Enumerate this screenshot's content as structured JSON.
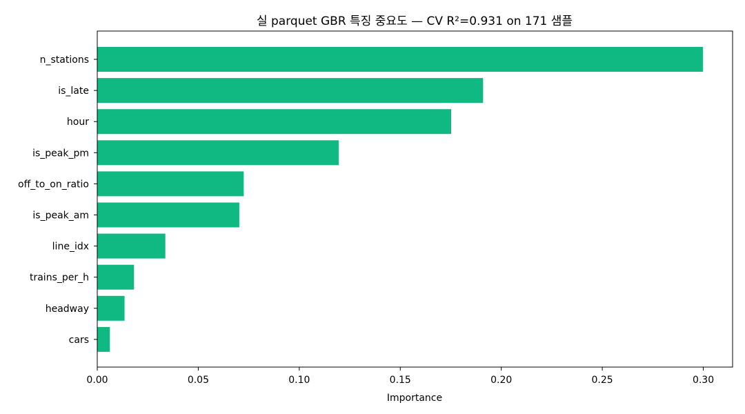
{
  "chart_data": {
    "type": "bar",
    "orientation": "horizontal",
    "title": "실 parquet GBR 특징 중요도 — CV R²=0.931 on 171 샘플",
    "xlabel": "Importance",
    "ylabel": "",
    "xlim": [
      0,
      0.3145
    ],
    "xticks": [
      "0.00",
      "0.05",
      "0.10",
      "0.15",
      "0.20",
      "0.25",
      "0.30"
    ],
    "categories": [
      "n_stations",
      "is_late",
      "hour",
      "is_peak_pm",
      "off_to_on_ratio",
      "is_peak_am",
      "line_idx",
      "trains_per_h",
      "headway",
      "cars"
    ],
    "values": [
      0.2998,
      0.191,
      0.1752,
      0.1195,
      0.0725,
      0.0703,
      0.0337,
      0.0182,
      0.0135,
      0.0062
    ],
    "bar_color": "#10b981",
    "grid": false,
    "legend": "none"
  }
}
